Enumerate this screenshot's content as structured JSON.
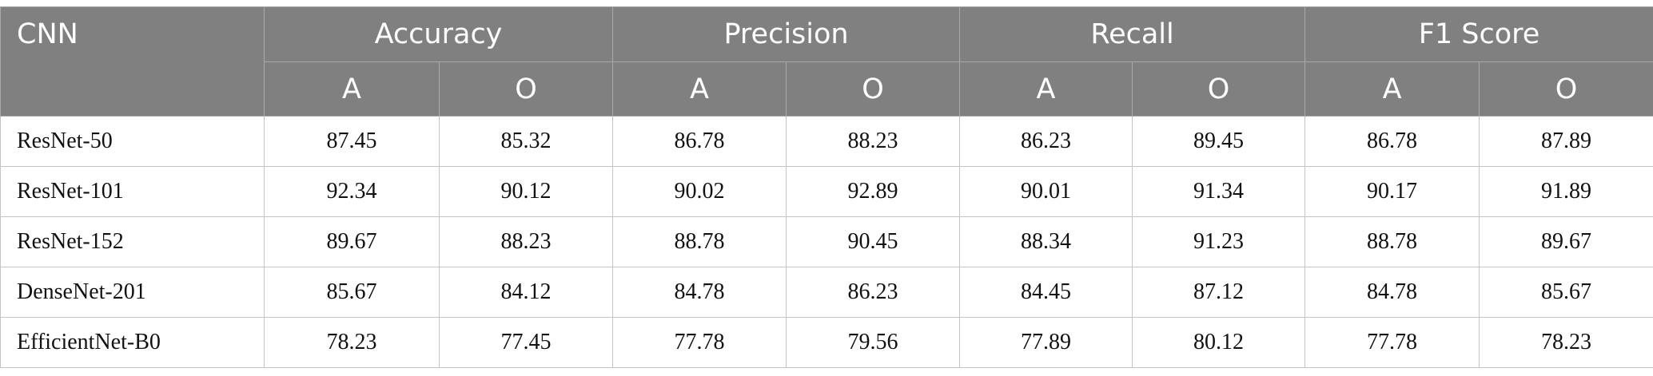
{
  "header": {
    "first_col": "CNN",
    "groups": [
      "Accuracy",
      "Precision",
      "Recall",
      "F1 Score"
    ],
    "subcols": [
      "A",
      "O"
    ]
  },
  "rows": [
    {
      "name": "ResNet-50",
      "values": [
        "87.45",
        "85.32",
        "86.78",
        "88.23",
        "86.23",
        "89.45",
        "86.78",
        "87.89"
      ]
    },
    {
      "name": "ResNet-101",
      "values": [
        "92.34",
        "90.12",
        "90.02",
        "92.89",
        "90.01",
        "91.34",
        "90.17",
        "91.89"
      ]
    },
    {
      "name": "ResNet-152",
      "values": [
        "89.67",
        "88.23",
        "88.78",
        "90.45",
        "88.34",
        "91.23",
        "88.78",
        "89.67"
      ]
    },
    {
      "name": "DenseNet-201",
      "values": [
        "85.67",
        "84.12",
        "84.78",
        "86.23",
        "84.45",
        "87.12",
        "84.78",
        "85.67"
      ]
    },
    {
      "name": "EfficientNet-B0",
      "values": [
        "78.23",
        "77.45",
        "77.78",
        "79.56",
        "77.89",
        "80.12",
        "77.78",
        "78.23"
      ]
    }
  ]
}
